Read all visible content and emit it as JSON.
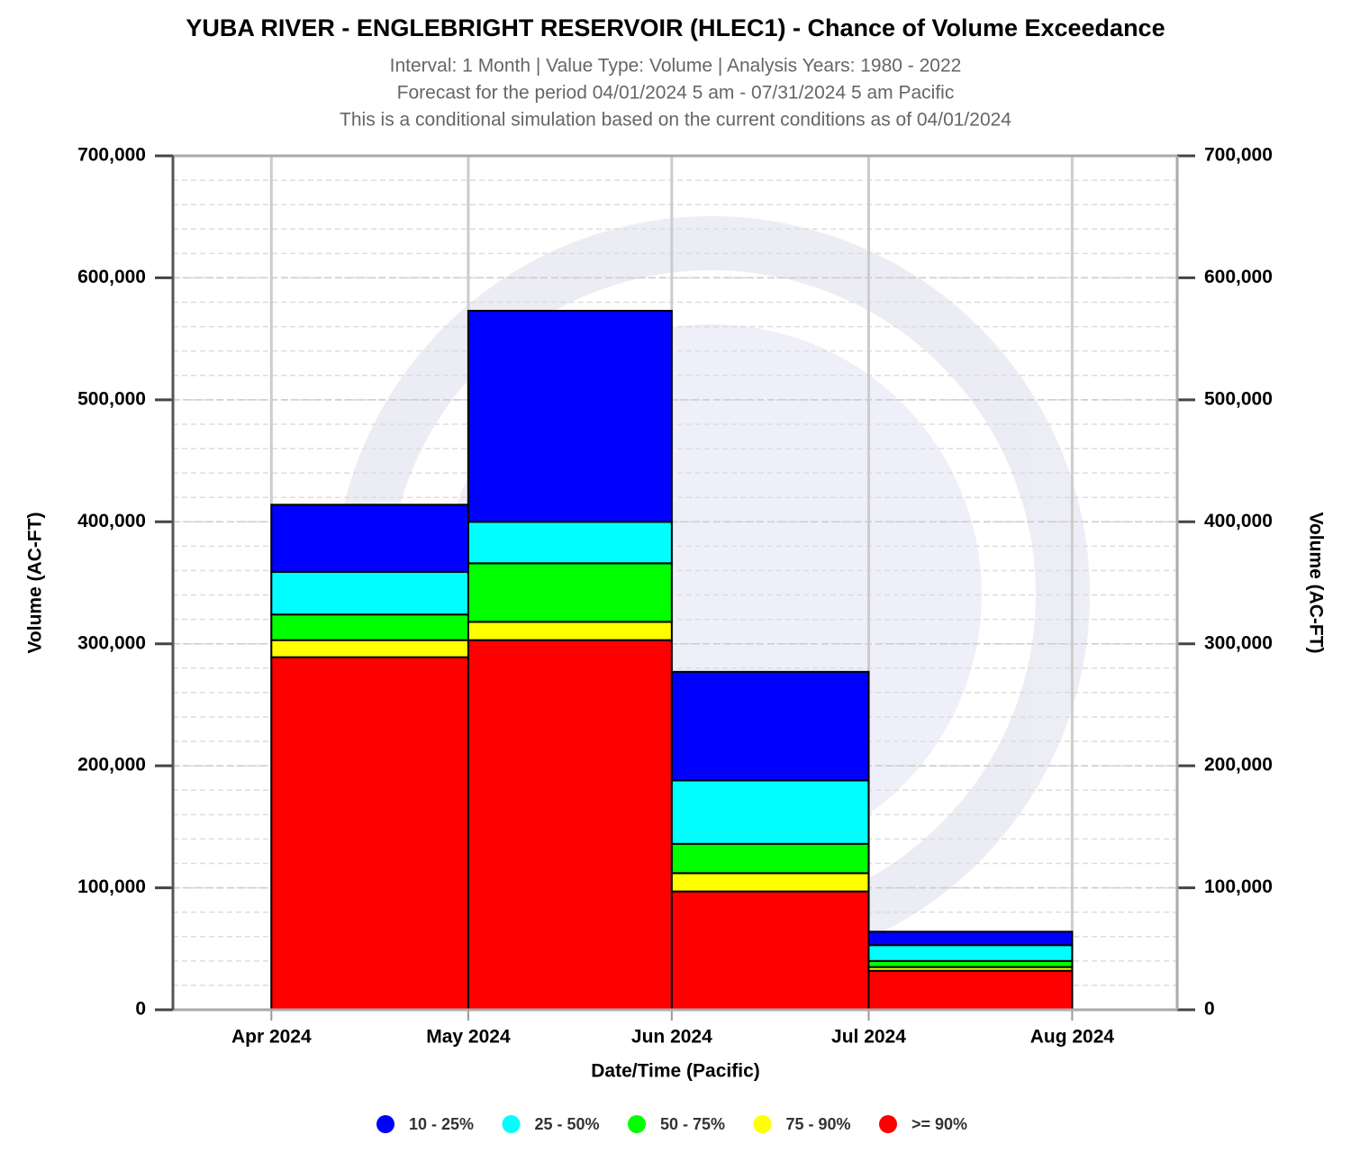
{
  "chart_data": {
    "type": "bar",
    "stacked": true,
    "title": "YUBA RIVER - ENGLEBRIGHT RESERVOIR (HLEC1) - Chance of Volume Exceedance",
    "subtitle": [
      "Interval: 1 Month | Value Type: Volume | Analysis Years: 1980 - 2022",
      "Forecast for the period 04/01/2024 5 am - 07/31/2024 5 am Pacific",
      "This is a conditional simulation based on the current conditions as of 04/01/2024"
    ],
    "x_label": "Date/Time (Pacific)",
    "y_label": "Volume (AC-FT)",
    "y2_label": "Volume (AC-FT)",
    "x": [
      "2024-04-01",
      "2024-05-01",
      "2024-06-01",
      "2024-07-01"
    ],
    "xlim": [
      "2024-03-17",
      "2024-08-17"
    ],
    "xticks": [
      {
        "value": "2024-04-01",
        "label": "Apr 2024"
      },
      {
        "value": "2024-05-01",
        "label": "May 2024"
      },
      {
        "value": "2024-06-01",
        "label": "Jun 2024"
      },
      {
        "value": "2024-07-01",
        "label": "Jul 2024"
      },
      {
        "value": "2024-08-01",
        "label": "Aug 2024"
      }
    ],
    "series": [
      {
        "name": "10 - 25%",
        "color": "#0000ff",
        "values": [
          55000,
          173000,
          89000,
          11000
        ]
      },
      {
        "name": "25 - 50%",
        "color": "#00ffff",
        "values": [
          35000,
          34000,
          52000,
          13000
        ]
      },
      {
        "name": "50 - 75%",
        "color": "#00ff00",
        "values": [
          21000,
          48000,
          24000,
          5000
        ]
      },
      {
        "name": "75 - 90%",
        "color": "#ffff00",
        "values": [
          14000,
          15000,
          15000,
          3000
        ]
      },
      {
        "name": ">= 90%",
        "color": "#ff0000",
        "values": [
          289000,
          303000,
          97000,
          32000
        ]
      }
    ],
    "ylim": [
      0,
      700000
    ],
    "yticks": [
      {
        "value": 0,
        "label": "0"
      },
      {
        "value": 100000,
        "label": "100,000"
      },
      {
        "value": 200000,
        "label": "200,000"
      },
      {
        "value": 300000,
        "label": "300,000"
      },
      {
        "value": 400000,
        "label": "400,000"
      },
      {
        "value": 500000,
        "label": "500,000"
      },
      {
        "value": 600000,
        "label": "600,000"
      },
      {
        "value": 700000,
        "label": "700,000"
      }
    ],
    "y2lim": [
      0,
      700000
    ],
    "y2ticks": [
      {
        "value": 0,
        "label": "0"
      },
      {
        "value": 100000,
        "label": "100,000"
      },
      {
        "value": 200000,
        "label": "200,000"
      },
      {
        "value": 300000,
        "label": "300,000"
      },
      {
        "value": 400000,
        "label": "400,000"
      },
      {
        "value": 500000,
        "label": "500,000"
      },
      {
        "value": 600000,
        "label": "600,000"
      },
      {
        "value": 700000,
        "label": "700,000"
      }
    ],
    "minor_grid_step": 20000,
    "grid": true,
    "legend": "bottom"
  }
}
